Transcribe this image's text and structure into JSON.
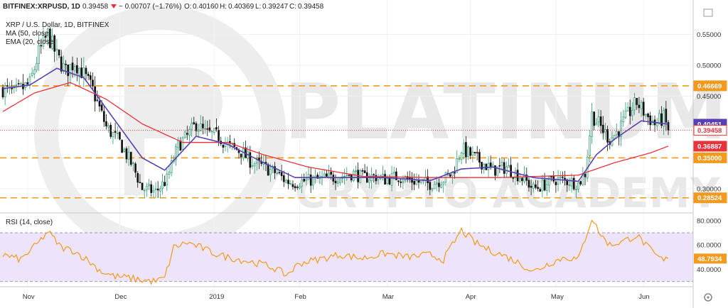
{
  "header": {
    "symbol": "BITFINEX:XRPUSD, 1D",
    "last": "0.39458",
    "change": "− 0.00707 (−1.76%)",
    "o_label": "O:",
    "o_value": "0.40160",
    "h_label": "H:",
    "h_value": "0.40369",
    "l_label": "L:",
    "l_value": "0.39247",
    "c_label": "C:",
    "c_value": "0.39458"
  },
  "legend": {
    "title": "XRP / U.S. Dollar, 1D, BITFINEX",
    "ma": "MA (50, close)",
    "ema": "EMA (20, close)",
    "rsi": "RSI (14, close)"
  },
  "watermark": {
    "line1": "PLATINUM",
    "line2": "CRYPTO ACADEMY"
  },
  "colors": {
    "up": "#2e9b74",
    "down": "#111111",
    "ema": "#5a3fb2",
    "ma": "#e8333a",
    "level": "#f39a1e",
    "rsi": "#f39a1e",
    "rsi_band": "#ede4fb"
  },
  "chart_data": [
    {
      "type": "candlestick",
      "title": "XRP / U.S. Dollar, 1D, BITFINEX",
      "ylim": [
        0.27,
        0.585
      ],
      "y_ticks": [
        "0.55000",
        "0.50000",
        "0.45000",
        "0.30000"
      ],
      "x_ticks": [
        "Nov",
        "Dec",
        "2019",
        "Feb",
        "Mar",
        "Apr",
        "May",
        "Jun"
      ],
      "series": [
        {
          "name": "EMA (20, close)"
        },
        {
          "name": "MA (50, close)"
        }
      ],
      "last_price": 0.39458,
      "price_labels": [
        "0.46669",
        "0.40451",
        "0.39458",
        "0.36887",
        "0.35000",
        "0.28524"
      ],
      "horizontal_levels": [
        0.46669,
        0.35,
        0.28524
      ],
      "waypoints": [
        [
          0,
          0.462
        ],
        [
          5,
          0.455
        ],
        [
          12,
          0.47
        ],
        [
          16,
          0.52
        ],
        [
          20,
          0.55
        ],
        [
          24,
          0.515
        ],
        [
          28,
          0.49
        ],
        [
          32,
          0.505
        ],
        [
          36,
          0.485
        ],
        [
          40,
          0.46
        ],
        [
          46,
          0.4
        ],
        [
          52,
          0.375
        ],
        [
          58,
          0.335
        ],
        [
          62,
          0.3
        ],
        [
          68,
          0.295
        ],
        [
          73,
          0.315
        ],
        [
          78,
          0.37
        ],
        [
          82,
          0.385
        ],
        [
          86,
          0.405
        ],
        [
          90,
          0.39
        ],
        [
          96,
          0.385
        ],
        [
          100,
          0.37
        ],
        [
          106,
          0.36
        ],
        [
          110,
          0.345
        ],
        [
          116,
          0.335
        ],
        [
          122,
          0.325
        ],
        [
          126,
          0.312
        ],
        [
          130,
          0.31
        ],
        [
          135,
          0.313
        ],
        [
          140,
          0.315
        ],
        [
          146,
          0.318
        ],
        [
          150,
          0.32
        ],
        [
          156,
          0.325
        ],
        [
          160,
          0.318
        ],
        [
          166,
          0.32
        ],
        [
          170,
          0.315
        ],
        [
          176,
          0.32
        ],
        [
          180,
          0.315
        ],
        [
          186,
          0.31
        ],
        [
          190,
          0.308
        ],
        [
          196,
          0.315
        ],
        [
          200,
          0.325
        ],
        [
          204,
          0.365
        ],
        [
          210,
          0.35
        ],
        [
          214,
          0.34
        ],
        [
          218,
          0.33
        ],
        [
          224,
          0.335
        ],
        [
          228,
          0.325
        ],
        [
          232,
          0.315
        ],
        [
          236,
          0.3
        ],
        [
          240,
          0.305
        ],
        [
          246,
          0.315
        ],
        [
          252,
          0.312
        ],
        [
          256,
          0.308
        ],
        [
          259,
          0.325
        ],
        [
          262,
          0.42
        ],
        [
          266,
          0.4
        ],
        [
          270,
          0.38
        ],
        [
          274,
          0.395
        ],
        [
          278,
          0.42
        ],
        [
          282,
          0.44
        ],
        [
          286,
          0.42
        ],
        [
          290,
          0.405
        ],
        [
          294,
          0.415
        ],
        [
          296,
          0.39458
        ]
      ],
      "ema_waypoints": [
        [
          0,
          0.462
        ],
        [
          12,
          0.468
        ],
        [
          24,
          0.495
        ],
        [
          36,
          0.48
        ],
        [
          50,
          0.41
        ],
        [
          62,
          0.35
        ],
        [
          72,
          0.33
        ],
        [
          86,
          0.385
        ],
        [
          100,
          0.372
        ],
        [
          116,
          0.342
        ],
        [
          130,
          0.318
        ],
        [
          150,
          0.318
        ],
        [
          170,
          0.318
        ],
        [
          190,
          0.313
        ],
        [
          204,
          0.332
        ],
        [
          218,
          0.335
        ],
        [
          236,
          0.318
        ],
        [
          256,
          0.312
        ],
        [
          264,
          0.355
        ],
        [
          272,
          0.38
        ],
        [
          284,
          0.41
        ],
        [
          296,
          0.40451
        ]
      ],
      "ma_waypoints": [
        [
          0,
          0.425
        ],
        [
          14,
          0.455
        ],
        [
          30,
          0.472
        ],
        [
          46,
          0.445
        ],
        [
          62,
          0.405
        ],
        [
          80,
          0.375
        ],
        [
          100,
          0.375
        ],
        [
          116,
          0.355
        ],
        [
          136,
          0.335
        ],
        [
          160,
          0.32
        ],
        [
          190,
          0.318
        ],
        [
          220,
          0.318
        ],
        [
          256,
          0.322
        ],
        [
          272,
          0.342
        ],
        [
          288,
          0.358
        ],
        [
          296,
          0.36887
        ]
      ]
    },
    {
      "type": "line",
      "title": "RSI (14, close)",
      "ylim": [
        28,
        84
      ],
      "y_ticks": [
        "80.0000",
        "60.0000",
        "40.0000"
      ],
      "band": [
        30,
        70
      ],
      "last_value": "48.7934",
      "series": [
        {
          "name": "RSI (14, close)",
          "waypoints": [
            [
              0,
              52
            ],
            [
              8,
              48
            ],
            [
              16,
              62
            ],
            [
              20,
              71
            ],
            [
              26,
              58
            ],
            [
              32,
              55
            ],
            [
              38,
              47
            ],
            [
              44,
              38
            ],
            [
              50,
              34
            ],
            [
              56,
              33
            ],
            [
              62,
              31
            ],
            [
              68,
              30
            ],
            [
              72,
              33
            ],
            [
              76,
              58
            ],
            [
              82,
              62
            ],
            [
              88,
              58
            ],
            [
              94,
              53
            ],
            [
              100,
              50
            ],
            [
              108,
              47
            ],
            [
              116,
              44
            ],
            [
              122,
              40
            ],
            [
              126,
              35
            ],
            [
              132,
              45
            ],
            [
              140,
              48
            ],
            [
              150,
              52
            ],
            [
              160,
              49
            ],
            [
              170,
              53
            ],
            [
              180,
              50
            ],
            [
              190,
              52
            ],
            [
              196,
              48
            ],
            [
              204,
              72
            ],
            [
              210,
              62
            ],
            [
              216,
              56
            ],
            [
              222,
              52
            ],
            [
              230,
              45
            ],
            [
              236,
              38
            ],
            [
              242,
              44
            ],
            [
              250,
              50
            ],
            [
              256,
              48
            ],
            [
              262,
              82
            ],
            [
              266,
              68
            ],
            [
              270,
              60
            ],
            [
              276,
              63
            ],
            [
              282,
              68
            ],
            [
              286,
              60
            ],
            [
              290,
              52
            ],
            [
              294,
              47
            ],
            [
              296,
              48.79
            ]
          ]
        }
      ]
    }
  ]
}
